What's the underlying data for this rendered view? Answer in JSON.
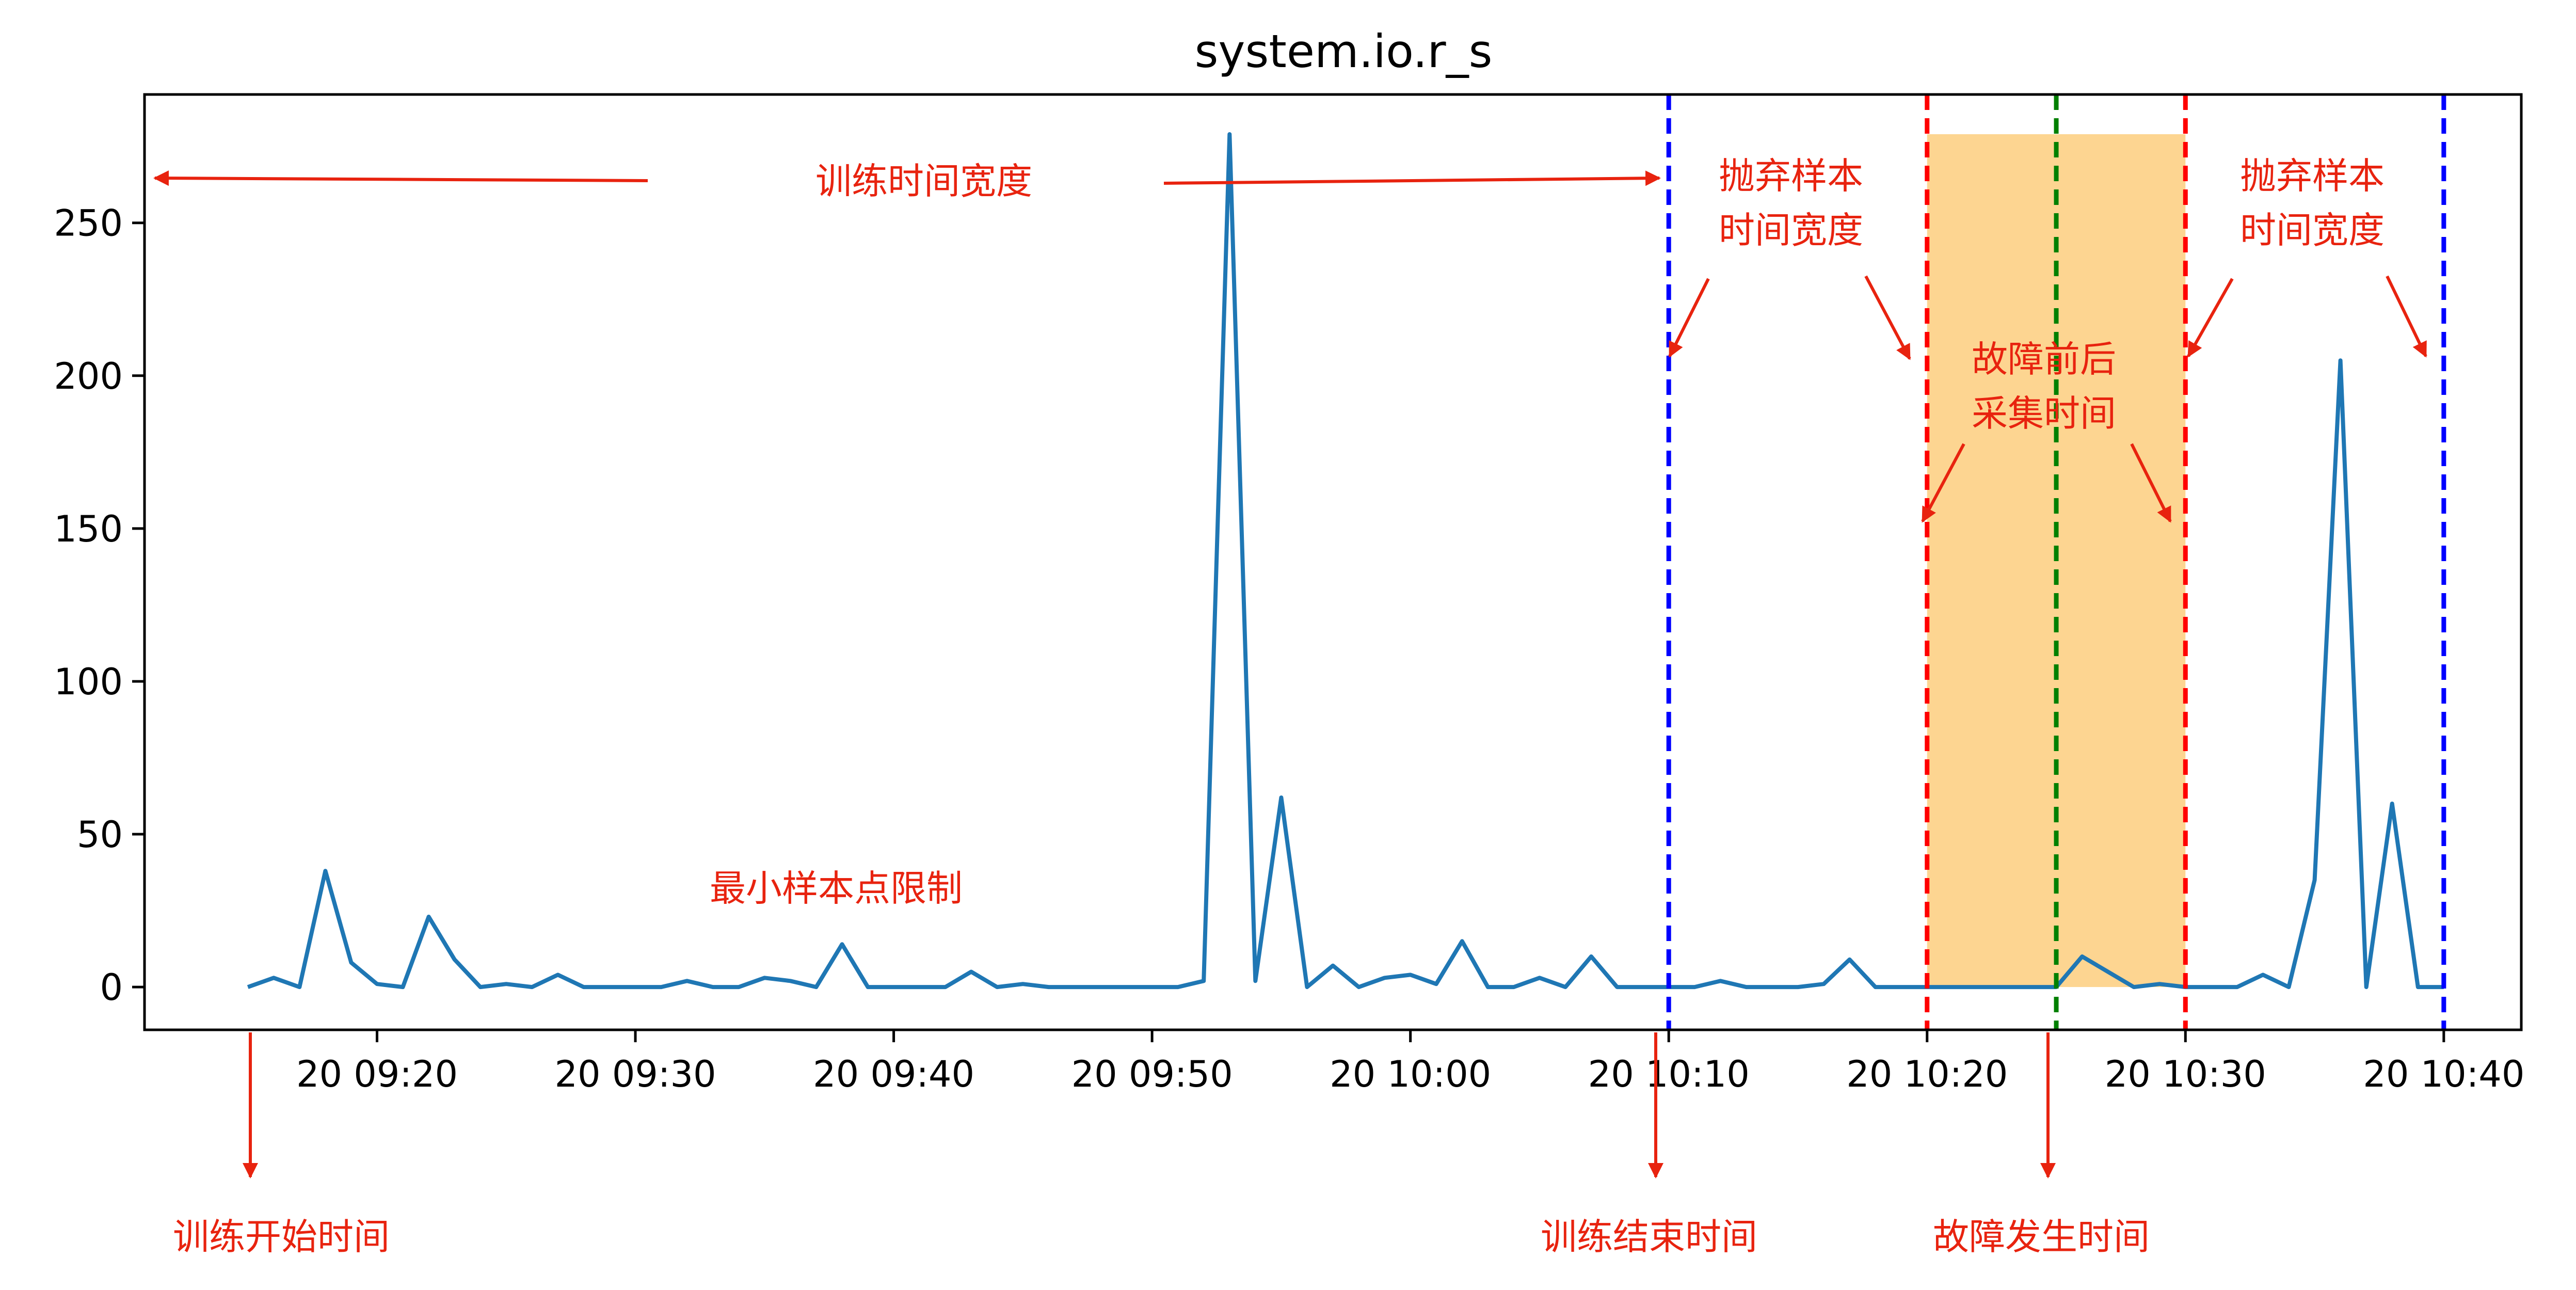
{
  "chart_data": {
    "type": "line",
    "title": "system.io.r_s",
    "xlabel": "",
    "ylabel": "",
    "ylim": [
      -14,
      292
    ],
    "x_range": [
      "20 09:11",
      "20 10:43"
    ],
    "grid": false,
    "x_ticks": [
      "20 09:20",
      "20 09:30",
      "20 09:40",
      "20 09:50",
      "20 10:00",
      "20 10:10",
      "20 10:20",
      "20 10:30",
      "20 10:40"
    ],
    "y_ticks": [
      "0",
      "50",
      "100",
      "150",
      "200",
      "250"
    ],
    "series": [
      {
        "color": "#1f77b4",
        "points": [
          [
            "20 09:15",
            0
          ],
          [
            "20 09:16",
            3
          ],
          [
            "20 09:17",
            0
          ],
          [
            "20 09:18",
            38
          ],
          [
            "20 09:19",
            8
          ],
          [
            "20 09:20",
            1
          ],
          [
            "20 09:21",
            0
          ],
          [
            "20 09:22",
            23
          ],
          [
            "20 09:23",
            9
          ],
          [
            "20 09:24",
            0
          ],
          [
            "20 09:25",
            1
          ],
          [
            "20 09:26",
            0
          ],
          [
            "20 09:27",
            4
          ],
          [
            "20 09:28",
            0
          ],
          [
            "20 09:29",
            0
          ],
          [
            "20 09:30",
            0
          ],
          [
            "20 09:31",
            0
          ],
          [
            "20 09:32",
            2
          ],
          [
            "20 09:33",
            0
          ],
          [
            "20 09:34",
            0
          ],
          [
            "20 09:35",
            3
          ],
          [
            "20 09:36",
            2
          ],
          [
            "20 09:37",
            0
          ],
          [
            "20 09:38",
            14
          ],
          [
            "20 09:39",
            0
          ],
          [
            "20 09:40",
            0
          ],
          [
            "20 09:41",
            0
          ],
          [
            "20 09:42",
            0
          ],
          [
            "20 09:43",
            5
          ],
          [
            "20 09:44",
            0
          ],
          [
            "20 09:45",
            1
          ],
          [
            "20 09:46",
            0
          ],
          [
            "20 09:47",
            0
          ],
          [
            "20 09:48",
            0
          ],
          [
            "20 09:49",
            0
          ],
          [
            "20 09:50",
            0
          ],
          [
            "20 09:51",
            0
          ],
          [
            "20 09:52",
            2
          ],
          [
            "20 09:53",
            279
          ],
          [
            "20 09:54",
            2
          ],
          [
            "20 09:55",
            62
          ],
          [
            "20 09:56",
            0
          ],
          [
            "20 09:57",
            7
          ],
          [
            "20 09:58",
            0
          ],
          [
            "20 09:59",
            3
          ],
          [
            "20 10:00",
            4
          ],
          [
            "20 10:01",
            1
          ],
          [
            "20 10:02",
            15
          ],
          [
            "20 10:03",
            0
          ],
          [
            "20 10:04",
            0
          ],
          [
            "20 10:05",
            3
          ],
          [
            "20 10:06",
            0
          ],
          [
            "20 10:07",
            10
          ],
          [
            "20 10:08",
            0
          ],
          [
            "20 10:09",
            0
          ],
          [
            "20 10:10",
            0
          ],
          [
            "20 10:11",
            0
          ],
          [
            "20 10:12",
            2
          ],
          [
            "20 10:13",
            0
          ],
          [
            "20 10:14",
            0
          ],
          [
            "20 10:15",
            0
          ],
          [
            "20 10:16",
            1
          ],
          [
            "20 10:17",
            9
          ],
          [
            "20 10:18",
            0
          ],
          [
            "20 10:19",
            0
          ],
          [
            "20 10:20",
            0
          ],
          [
            "20 10:21",
            0
          ],
          [
            "20 10:22",
            0
          ],
          [
            "20 10:23",
            0
          ],
          [
            "20 10:24",
            0
          ],
          [
            "20 10:25",
            0
          ],
          [
            "20 10:26",
            10
          ],
          [
            "20 10:27",
            5
          ],
          [
            "20 10:28",
            0
          ],
          [
            "20 10:29",
            1
          ],
          [
            "20 10:30",
            0
          ],
          [
            "20 10:31",
            0
          ],
          [
            "20 10:32",
            0
          ],
          [
            "20 10:33",
            4
          ],
          [
            "20 10:34",
            0
          ],
          [
            "20 10:35",
            35
          ],
          [
            "20 10:36",
            205
          ],
          [
            "20 10:37",
            0
          ],
          [
            "20 10:38",
            60
          ],
          [
            "20 10:39",
            0
          ],
          [
            "20 10:40",
            0
          ]
        ]
      }
    ],
    "vertical_lines": [
      {
        "x": "20 10:10",
        "color": "#0000ff",
        "style": "dashed"
      },
      {
        "x": "20 10:20",
        "color": "#ff0000",
        "style": "dashed"
      },
      {
        "x": "20 10:25",
        "color": "#008000",
        "style": "dashed"
      },
      {
        "x": "20 10:30",
        "color": "#ff0000",
        "style": "dashed"
      },
      {
        "x": "20 10:40",
        "color": "#0000ff",
        "style": "dashed"
      }
    ],
    "shaded_region": {
      "x_from": "20 10:20",
      "x_to": "20 10:30",
      "y_from": 0,
      "y_to": 279,
      "color": "#fdd591"
    },
    "annotations": [
      {
        "id": "train_width",
        "text": "训练时间宽度"
      },
      {
        "id": "discard_left_1",
        "text": "抛弃样本"
      },
      {
        "id": "discard_left_2",
        "text": "时间宽度"
      },
      {
        "id": "discard_right_1",
        "text": "抛弃样本"
      },
      {
        "id": "discard_right_2",
        "text": "时间宽度"
      },
      {
        "id": "collect_1",
        "text": "故障前后"
      },
      {
        "id": "collect_2",
        "text": "采集时间"
      },
      {
        "id": "min_samples",
        "text": "最小样本点限制"
      },
      {
        "id": "train_start",
        "text": "训练开始时间"
      },
      {
        "id": "train_end",
        "text": "训练结束时间"
      },
      {
        "id": "fault_time",
        "text": "故障发生时间"
      }
    ],
    "annotation_color": "#e8230f"
  }
}
